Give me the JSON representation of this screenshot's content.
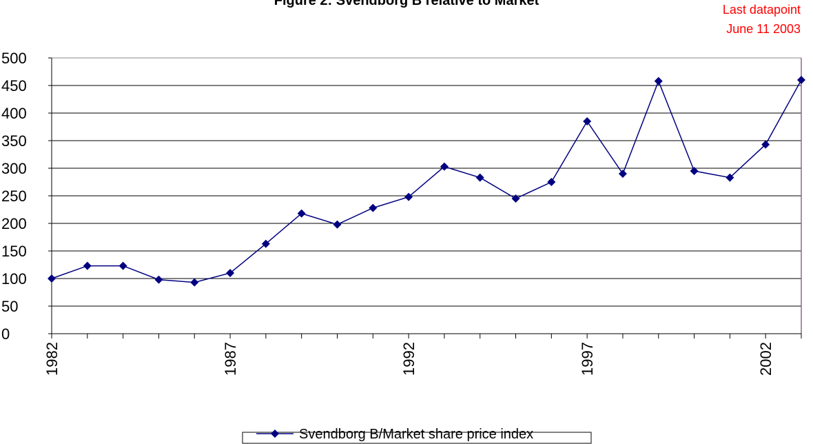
{
  "chart_data": {
    "type": "line",
    "title": "Figure 2: Svendborg B relative to Market",
    "annotation": [
      "Last datapoint",
      "June 11 2003"
    ],
    "annotation_color": "#ff0000",
    "categories": [
      "1982",
      null,
      null,
      null,
      null,
      "1987",
      null,
      null,
      null,
      null,
      "1992",
      null,
      null,
      null,
      null,
      "1997",
      null,
      null,
      null,
      null,
      "2002",
      null
    ],
    "series": [
      {
        "name": "Svendborg B/Market share price index",
        "color": "#000080",
        "values": [
          100,
          123,
          123,
          98,
          93,
          110,
          163,
          218,
          198,
          228,
          248,
          303,
          283,
          245,
          275,
          385,
          290,
          458,
          295,
          283,
          343,
          460
        ]
      }
    ],
    "ylim": [
      0,
      500
    ],
    "yticks": [
      0,
      50,
      100,
      150,
      200,
      250,
      300,
      350,
      400,
      450,
      500
    ],
    "grid": true,
    "legend": "bottom"
  }
}
